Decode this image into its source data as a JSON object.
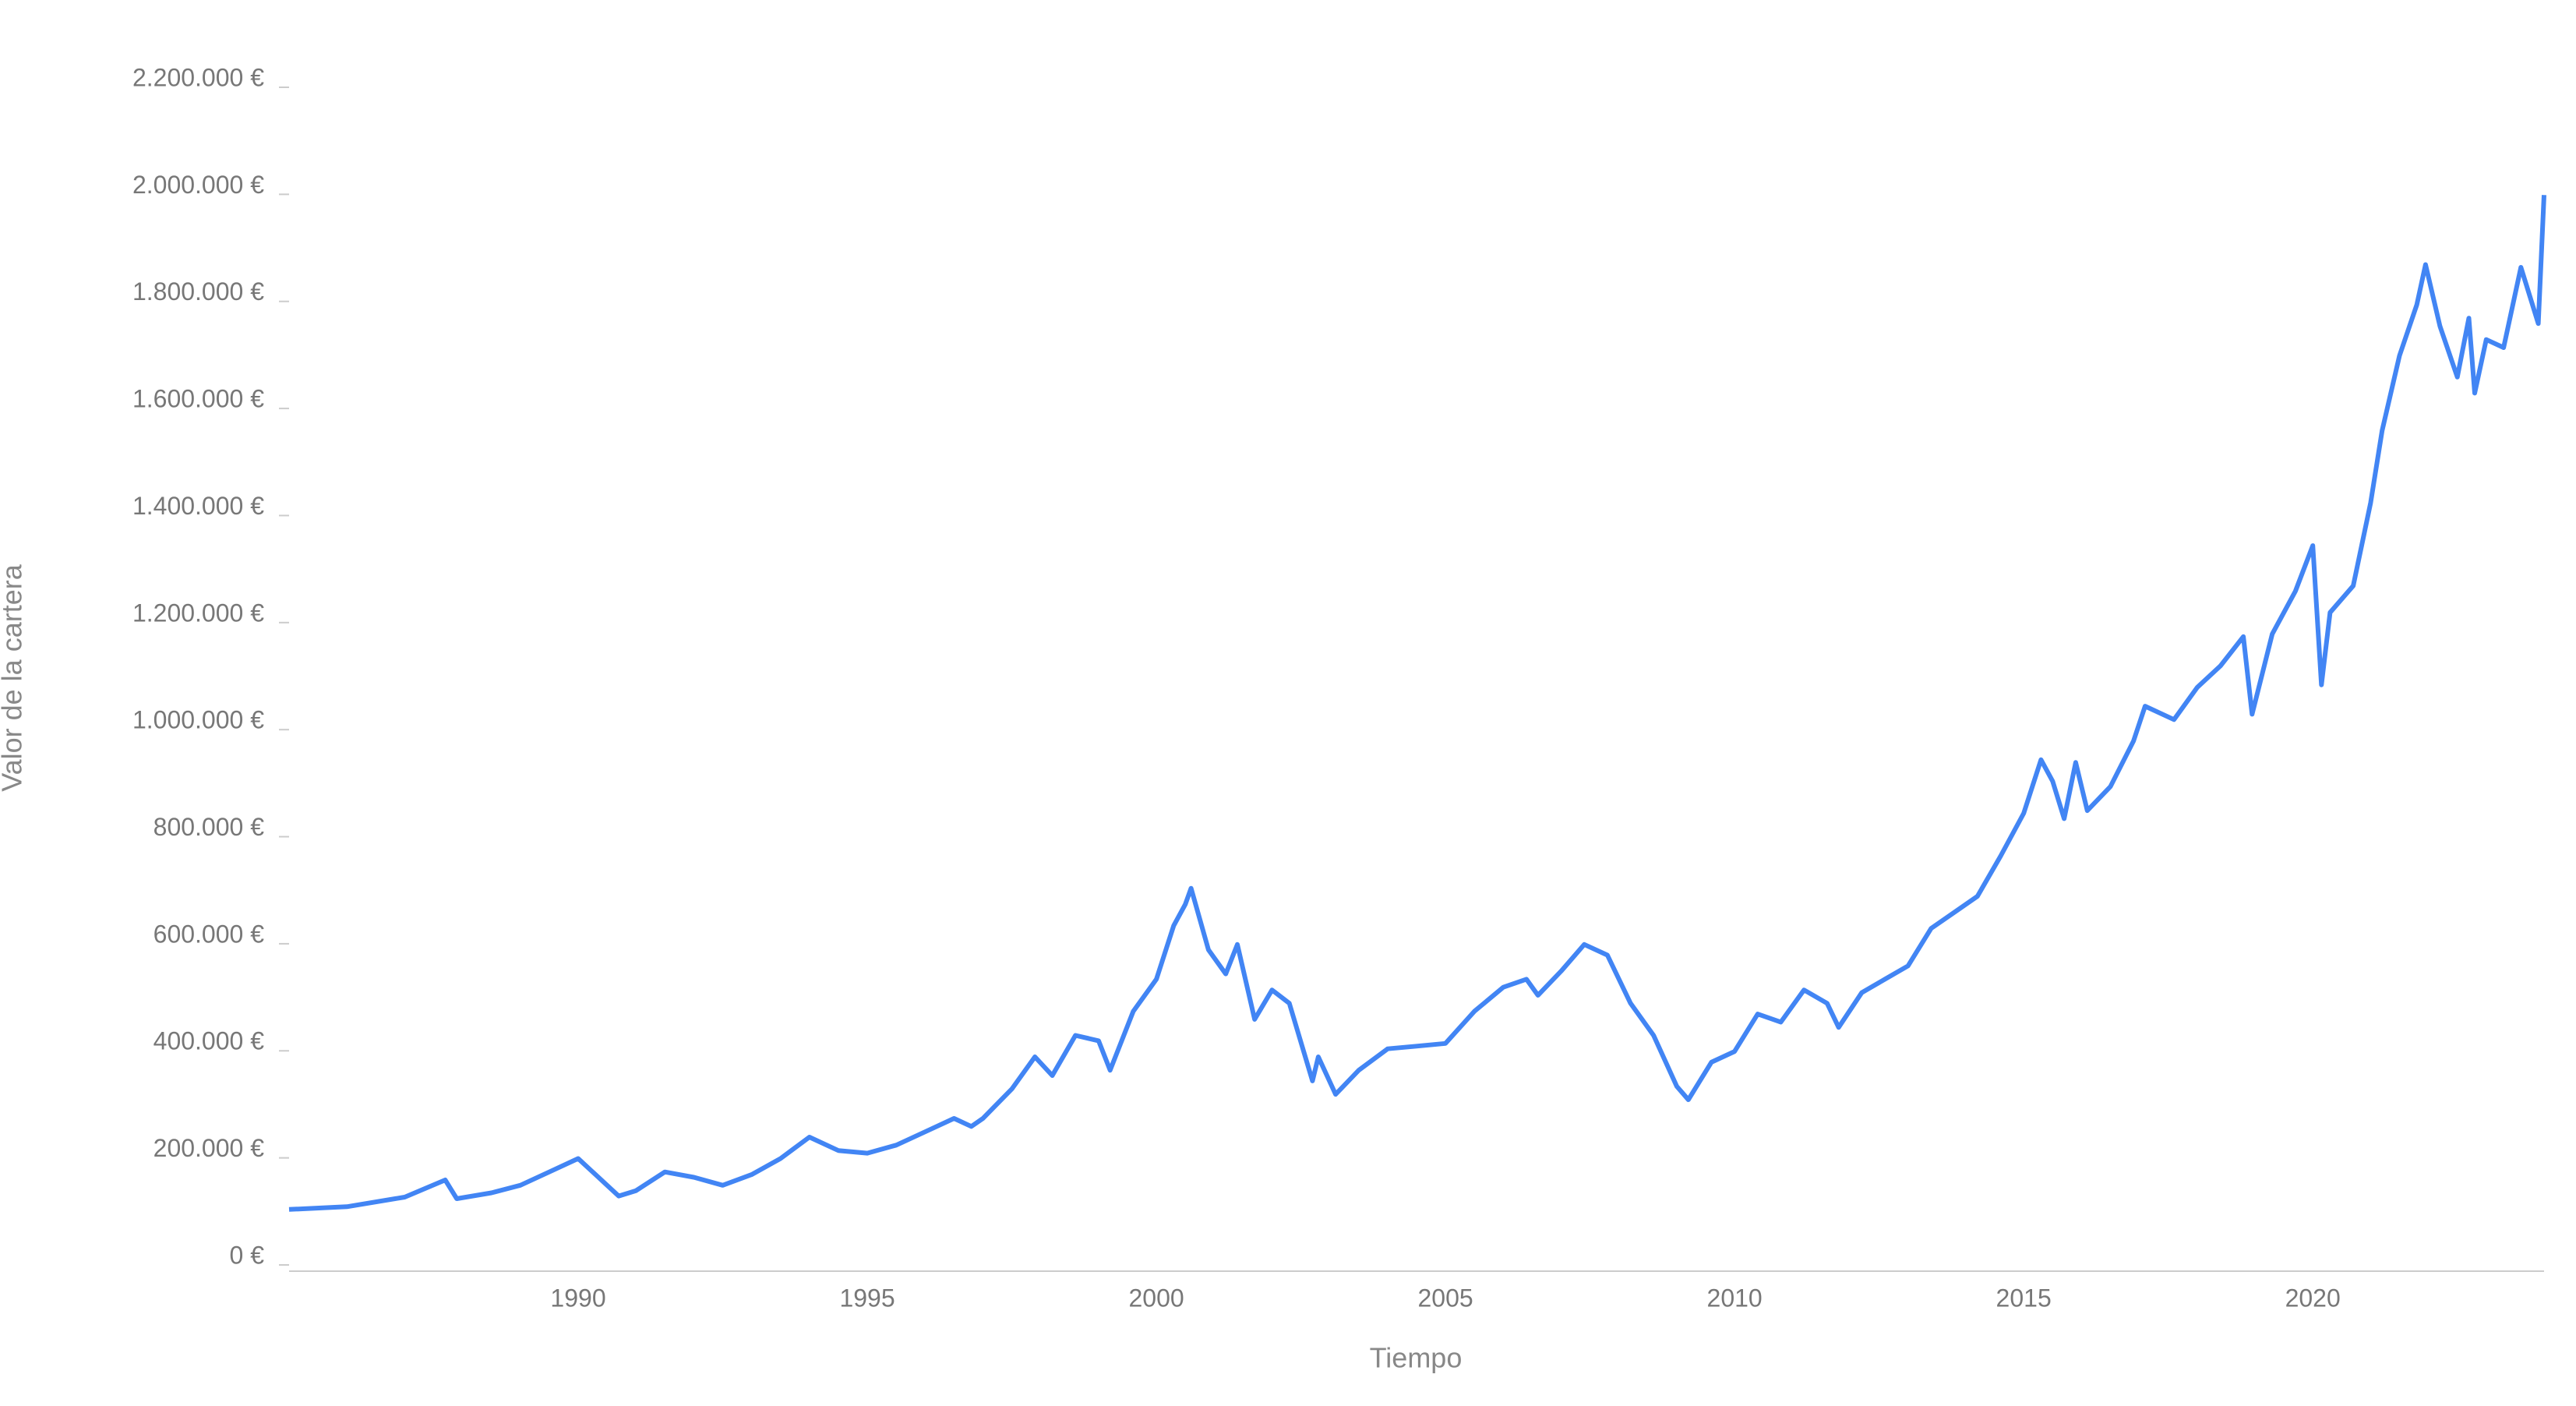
{
  "chart_data": {
    "type": "line",
    "xlabel": "Tiempo",
    "ylabel": "Valor de la cartera",
    "x": [
      1985.0,
      1986.0,
      1987.0,
      1987.7,
      1987.9,
      1988.5,
      1989.0,
      1989.5,
      1990.0,
      1990.3,
      1990.7,
      1991.0,
      1991.5,
      1992.0,
      1992.5,
      1993.0,
      1993.5,
      1994.0,
      1994.5,
      1995.0,
      1995.5,
      1996.0,
      1996.5,
      1996.8,
      1997.0,
      1997.5,
      1997.9,
      1998.2,
      1998.6,
      1999.0,
      1999.2,
      1999.6,
      2000.0,
      2000.3,
      2000.5,
      2000.6,
      2000.9,
      2001.2,
      2001.4,
      2001.7,
      2002.0,
      2002.3,
      2002.7,
      2002.8,
      2003.1,
      2003.5,
      2004.0,
      2004.5,
      2005.0,
      2005.5,
      2006.0,
      2006.4,
      2006.6,
      2007.0,
      2007.4,
      2007.8,
      2008.2,
      2008.6,
      2009.0,
      2009.2,
      2009.6,
      2010.0,
      2010.4,
      2010.8,
      2011.2,
      2011.6,
      2011.8,
      2012.2,
      2012.6,
      2013.0,
      2013.4,
      2013.8,
      2014.2,
      2014.6,
      2015.0,
      2015.3,
      2015.5,
      2015.7,
      2015.9,
      2016.1,
      2016.5,
      2016.9,
      2017.1,
      2017.6,
      2018.0,
      2018.4,
      2018.8,
      2018.95,
      2019.3,
      2019.7,
      2020.0,
      2020.15,
      2020.3,
      2020.7,
      2021.0,
      2021.2,
      2021.5,
      2021.8,
      2021.95,
      2022.2,
      2022.5,
      2022.7,
      2022.8,
      2023.0,
      2023.3,
      2023.6,
      2023.9,
      2024.0
    ],
    "series": [
      {
        "name": "Valor de la cartera",
        "color": "#4285f4",
        "values": [
          95000,
          100000,
          118000,
          150000,
          115000,
          126000,
          140000,
          165000,
          190000,
          160000,
          120000,
          130000,
          165000,
          155000,
          140000,
          160000,
          190000,
          230000,
          205000,
          200000,
          215000,
          240000,
          265000,
          250000,
          265000,
          320000,
          380000,
          345000,
          420000,
          410000,
          355000,
          465000,
          525000,
          625000,
          665000,
          695000,
          580000,
          535000,
          590000,
          450000,
          505000,
          480000,
          335000,
          380000,
          310000,
          355000,
          395000,
          400000,
          405000,
          465000,
          510000,
          525000,
          495000,
          540000,
          590000,
          570000,
          480000,
          420000,
          325000,
          300000,
          370000,
          390000,
          460000,
          445000,
          505000,
          480000,
          435000,
          500000,
          525000,
          550000,
          620000,
          650000,
          680000,
          755000,
          835000,
          935000,
          895000,
          825000,
          930000,
          840000,
          885000,
          970000,
          1035000,
          1010000,
          1070000,
          1110000,
          1165000,
          1020000,
          1170000,
          1250000,
          1335000,
          1075000,
          1210000,
          1260000,
          1415000,
          1550000,
          1690000,
          1785000,
          1860000,
          1745000,
          1650000,
          1760000,
          1620000,
          1720000,
          1705000,
          1855000,
          1750000,
          1990000
        ]
      }
    ],
    "xlim": [
      1985,
      2024
    ],
    "xticks": [
      1990,
      1995,
      2000,
      2005,
      2010,
      2015,
      2020
    ],
    "ylim": [
      0,
      2200000
    ],
    "yticks": [
      {
        "value": 0,
        "label": "0 €"
      },
      {
        "value": 200000,
        "label": "200.000 €"
      },
      {
        "value": 400000,
        "label": "400.000 €"
      },
      {
        "value": 600000,
        "label": "600.000 €"
      },
      {
        "value": 800000,
        "label": "800.000 €"
      },
      {
        "value": 1000000,
        "label": "1.000.000 €"
      },
      {
        "value": 1200000,
        "label": "1.200.000 €"
      },
      {
        "value": 1400000,
        "label": "1.400.000 €"
      },
      {
        "value": 1600000,
        "label": "1.600.000 €"
      },
      {
        "value": 1800000,
        "label": "1.800.000 €"
      },
      {
        "value": 2000000,
        "label": "2.000.000 €"
      },
      {
        "value": 2200000,
        "label": "2.200.000 €"
      }
    ],
    "grid": false
  }
}
